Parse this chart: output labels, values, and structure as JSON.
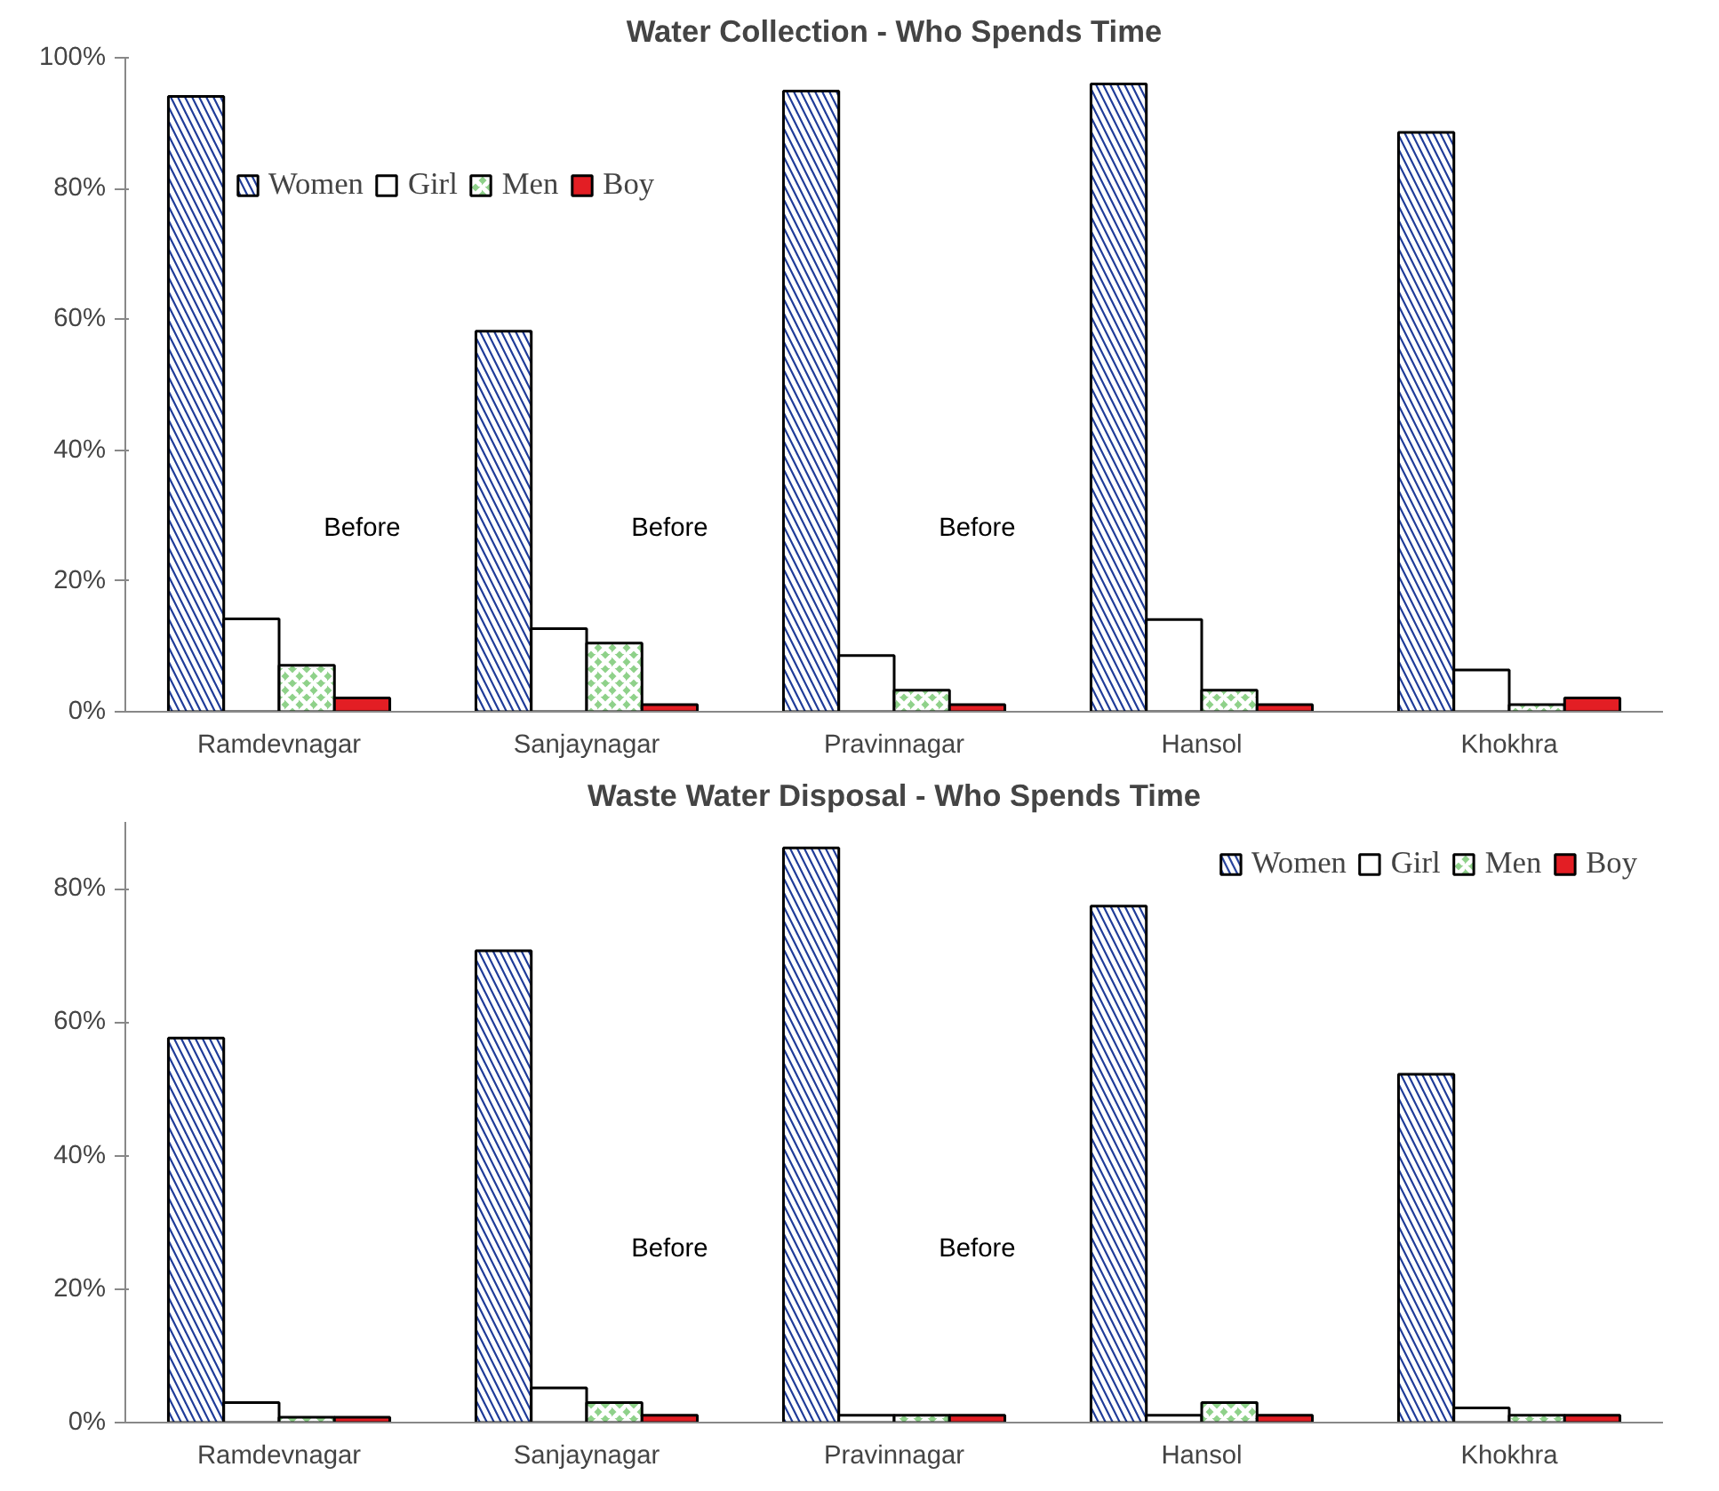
{
  "chart_data": [
    {
      "type": "bar",
      "title": "Water Collection - Who Spends Time",
      "categories": [
        "Ramdevnagar",
        "Sanjaynagar",
        "Pravinnagar",
        "Hansol",
        "Khokhra"
      ],
      "series": [
        {
          "name": "Women",
          "color": "#1f3c99",
          "values": [
            94.1,
            58.2,
            94.9,
            96.0,
            88.6
          ]
        },
        {
          "name": "Girl",
          "color": "#ffffff",
          "values": [
            14.2,
            12.7,
            8.6,
            14.1,
            6.4
          ]
        },
        {
          "name": "Men",
          "color": "#8fd18a",
          "values": [
            7.1,
            10.5,
            3.3,
            3.3,
            1.1
          ]
        },
        {
          "name": "Boy",
          "color": "#e31e24",
          "values": [
            2.1,
            1.1,
            1.1,
            1.1,
            2.1
          ]
        }
      ],
      "ylim": [
        0,
        100
      ],
      "yticks": [
        {
          "value": 0,
          "label": "0%"
        },
        {
          "value": 20,
          "label": "20%"
        },
        {
          "value": 40,
          "label": "40%"
        },
        {
          "value": 60,
          "label": "60%"
        },
        {
          "value": 80,
          "label": "80%"
        },
        {
          "value": 100,
          "label": "100%"
        }
      ],
      "annotations": [
        "Before",
        "Before",
        "Before"
      ],
      "legend": "top left",
      "grid": false
    },
    {
      "type": "bar",
      "title": "Waste Water Disposal - Who Spends Time",
      "categories": [
        "Ramdevnagar",
        "Sanjaynagar",
        "Pravinnagar",
        "Hansol",
        "Khokhra"
      ],
      "series": [
        {
          "name": "Women",
          "color": "#1f3c99",
          "values": [
            57.6,
            70.7,
            86.1,
            77.4,
            52.2
          ]
        },
        {
          "name": "Girl",
          "color": "#ffffff",
          "values": [
            3.0,
            5.2,
            1.1,
            1.1,
            2.2
          ]
        },
        {
          "name": "Men",
          "color": "#8fd18a",
          "values": [
            0.8,
            3.0,
            1.1,
            3.0,
            1.1
          ]
        },
        {
          "name": "Boy",
          "color": "#e31e24",
          "values": [
            0.8,
            1.1,
            1.1,
            1.1,
            1.1
          ]
        }
      ],
      "ylim": [
        0,
        90
      ],
      "yticks": [
        {
          "value": 0,
          "label": "0%"
        },
        {
          "value": 20,
          "label": "20%"
        },
        {
          "value": 40,
          "label": "40%"
        },
        {
          "value": 60,
          "label": "60%"
        },
        {
          "value": 80,
          "label": "80%"
        }
      ],
      "annotations": [
        "Before",
        "Before"
      ],
      "legend": "top right",
      "grid": false
    }
  ]
}
